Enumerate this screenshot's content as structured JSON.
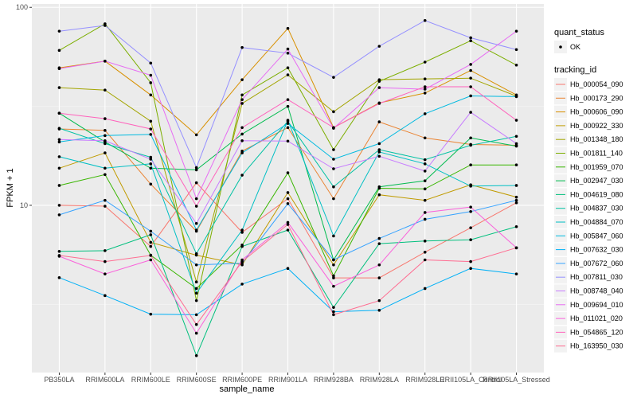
{
  "chart_data": {
    "type": "line",
    "title": "",
    "xlabel": "sample_name",
    "ylabel": "FPKM + 1",
    "yscale": "log10",
    "ylim": [
      1.43,
      104
    ],
    "yticks": [
      10,
      100
    ],
    "ytick_labels": [
      "10",
      "100"
    ],
    "grid": true,
    "legend_position": "right",
    "categories": [
      "PB350LA",
      "RRIM600LA",
      "RRIM600LE",
      "RRIM600SE",
      "RRIM600PE",
      "RRIM901LA",
      "RRIM928BA",
      "RRIM928LA",
      "RRIM928LE",
      "RRII105LA_Control",
      "RRII105LA_Stressed"
    ],
    "point_legend": {
      "title": "quant_status",
      "items": [
        {
          "label": "OK",
          "color": "#000000"
        }
      ]
    },
    "line_legend_title": "tracking_id",
    "series": [
      {
        "name": "Hb_000054_090",
        "color": "#F8766D",
        "values": [
          10.0,
          9.9,
          6.2,
          13.0,
          7.3,
          10.8,
          4.3,
          4.3,
          5.8,
          7.7,
          10.3
        ]
      },
      {
        "name": "Hb_000173_290",
        "color": "#EA8331",
        "values": [
          24.3,
          23.9,
          12.8,
          7.4,
          18.8,
          24.7,
          10.8,
          26.4,
          21.9,
          20.3,
          20.1
        ]
      },
      {
        "name": "Hb_000606_090",
        "color": "#D89000",
        "values": [
          49.5,
          53.5,
          36.1,
          22.7,
          43.1,
          78.3,
          24.7,
          32.9,
          36.9,
          48.0,
          36.1
        ]
      },
      {
        "name": "Hb_000922_330",
        "color": "#C09B00",
        "values": [
          15.4,
          18.4,
          6.5,
          5.6,
          5.0,
          11.6,
          5.0,
          11.3,
          10.6,
          12.7,
          11.0
        ]
      },
      {
        "name": "Hb_001348_180",
        "color": "#A3A500",
        "values": [
          39.3,
          38.2,
          26.6,
          4.1,
          32.7,
          45.6,
          29.7,
          43.1,
          43.5,
          43.9,
          35.6
        ]
      },
      {
        "name": "Hb_001811_140",
        "color": "#7CAE00",
        "values": [
          60.6,
          82.6,
          41.6,
          3.3,
          36.1,
          49.5,
          19.1,
          42.3,
          52.9,
          67.8,
          51.1
        ]
      },
      {
        "name": "Hb_001959_070",
        "color": "#39B600",
        "values": [
          12.6,
          14.3,
          5.6,
          3.8,
          6.3,
          14.6,
          4.4,
          12.2,
          12.1,
          16.0,
          16.0
        ]
      },
      {
        "name": "Hb_002947_030",
        "color": "#00BB4E",
        "values": [
          29.2,
          20.9,
          15.4,
          15.1,
          22.9,
          31.6,
          5.3,
          12.4,
          13.3,
          21.9,
          19.9
        ]
      },
      {
        "name": "Hb_004619_080",
        "color": "#00BF7D",
        "values": [
          5.85,
          5.9,
          7.1,
          1.74,
          6.2,
          7.5,
          3.05,
          6.4,
          6.6,
          6.7,
          7.8
        ]
      },
      {
        "name": "Hb_004837_030",
        "color": "#00C1A3",
        "values": [
          24.5,
          20.5,
          17.5,
          5.7,
          14.2,
          26.6,
          12.4,
          19.1,
          17.0,
          20.1,
          22.3
        ]
      },
      {
        "name": "Hb_004884_070",
        "color": "#00BFC4",
        "values": [
          17.6,
          15.4,
          16.2,
          3.6,
          7.5,
          26.9,
          7.0,
          18.6,
          16.2,
          12.5,
          12.6
        ]
      },
      {
        "name": "Hb_005847_060",
        "color": "#00BAE0",
        "values": [
          20.9,
          22.5,
          22.8,
          7.5,
          18.4,
          25.9,
          17.1,
          20.5,
          29.0,
          35.7,
          35.4
        ]
      },
      {
        "name": "Hb_007632_030",
        "color": "#00B0F6",
        "values": [
          4.31,
          3.5,
          2.82,
          2.8,
          4.0,
          4.8,
          2.9,
          2.95,
          3.8,
          4.8,
          4.5
        ]
      },
      {
        "name": "Hb_007672_060",
        "color": "#35A2FF",
        "values": [
          8.95,
          10.6,
          7.4,
          5.0,
          5.1,
          10.2,
          5.3,
          6.8,
          8.5,
          9.3,
          10.6
        ]
      },
      {
        "name": "Hb_007811_030",
        "color": "#9590FF",
        "values": [
          75.8,
          81.0,
          52.3,
          15.5,
          62.7,
          58.7,
          44.3,
          63.6,
          85.8,
          70.2,
          61.2
        ]
      },
      {
        "name": "Hb_008748_040",
        "color": "#C77CFF",
        "values": [
          21.5,
          21.2,
          17.1,
          8.1,
          21.2,
          21.1,
          15.3,
          17.7,
          14.9,
          29.5,
          20.5
        ]
      },
      {
        "name": "Hb_009694_010",
        "color": "#E76BF3",
        "values": [
          49.0,
          53.5,
          45.4,
          10.8,
          34.2,
          61.6,
          24.5,
          39.3,
          38.6,
          51.5,
          75.8
        ]
      },
      {
        "name": "Hb_011021_020",
        "color": "#FA62DB",
        "values": [
          5.53,
          4.5,
          5.3,
          2.26,
          5.3,
          8.2,
          3.9,
          5.0,
          9.2,
          9.8,
          6.1
        ]
      },
      {
        "name": "Hb_054865_120",
        "color": "#FF62BC",
        "values": [
          29.2,
          27.4,
          24.3,
          9.9,
          24.7,
          34.2,
          24.7,
          32.7,
          39.7,
          39.7,
          26.9
        ]
      },
      {
        "name": "Hb_163950_030",
        "color": "#FF6C91",
        "values": [
          5.58,
          5.2,
          5.58,
          2.5,
          5.2,
          8.0,
          2.8,
          3.3,
          5.3,
          5.2,
          6.1
        ]
      }
    ]
  }
}
